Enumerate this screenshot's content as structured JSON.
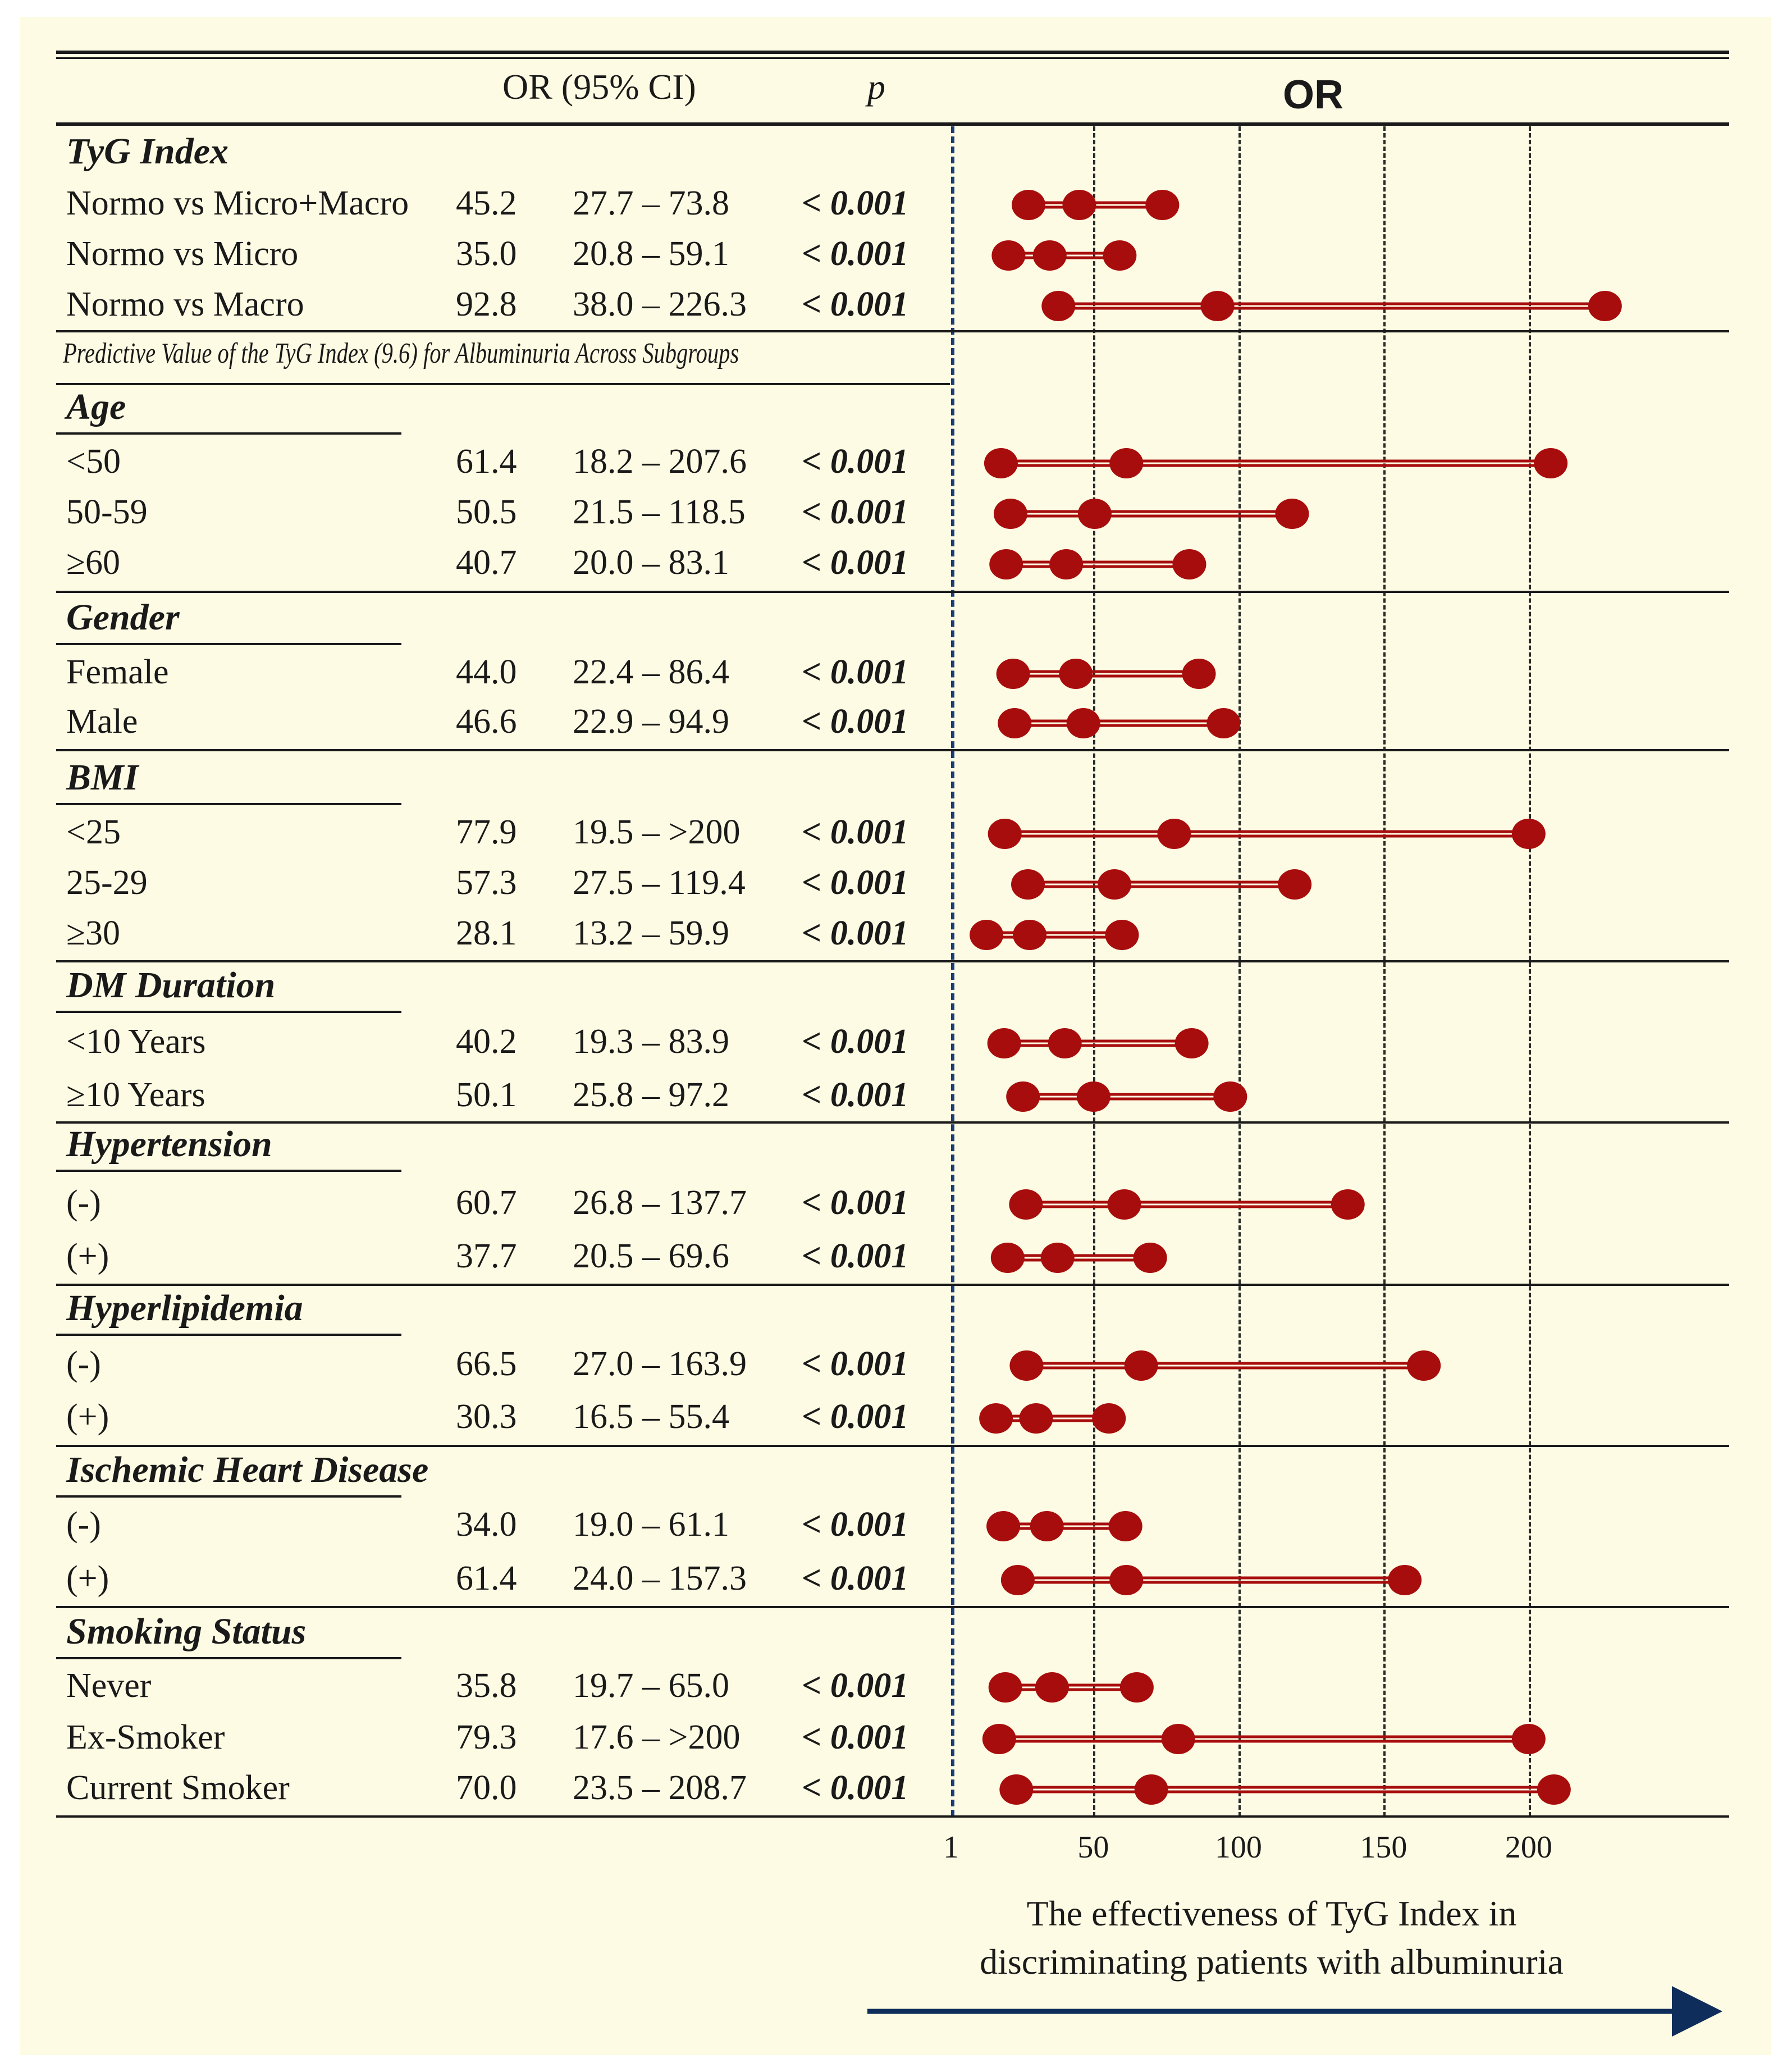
{
  "colors": {
    "marker": "#a80d0d",
    "axis_arrow": "#0f2d5a",
    "ref_line": "#1b3d78",
    "panel_bg": "#fdfbe3"
  },
  "header": {
    "col_or_ci": "OR (95% CI)",
    "col_p": "p",
    "plot_title": "OR"
  },
  "subtitle": "Predictive Value of the TyG Index (9.6) for Albuminuria Across Subgroups",
  "axis": {
    "ticks": [
      "1",
      "50",
      "100",
      "150",
      "200"
    ],
    "caption_line1": "The effectiveness of TyG Index in",
    "caption_line2": "discriminating patients with albuminuria"
  },
  "chart_data": {
    "type": "forest",
    "title": "OR",
    "xlabel": "The effectiveness of TyG Index in discriminating patients with albuminuria",
    "xlim": [
      1,
      260
    ],
    "x_ticks": [
      1,
      50,
      100,
      150,
      200
    ],
    "reference_line": 1,
    "groups": [
      {
        "name": "TyG Index",
        "rows": [
          {
            "label": "Normo vs Micro+Macro",
            "or_text": "45.2",
            "ci_text": "27.7 – 73.8",
            "p_text": "< 0.001",
            "or": 45.2,
            "lower": 27.7,
            "upper": 73.8
          },
          {
            "label": "Normo vs Micro",
            "or_text": "35.0",
            "ci_text": "20.8 – 59.1",
            "p_text": "< 0.001",
            "or": 35.0,
            "lower": 20.8,
            "upper": 59.1
          },
          {
            "label": "Normo vs Macro",
            "or_text": "92.8",
            "ci_text": "38.0 – 226.3",
            "p_text": "< 0.001",
            "or": 92.8,
            "lower": 38.0,
            "upper": 226.3
          }
        ]
      },
      {
        "name": "Age",
        "rows": [
          {
            "label": "<50",
            "or_text": "61.4",
            "ci_text": "18.2 – 207.6",
            "p_text": "< 0.001",
            "or": 61.4,
            "lower": 18.2,
            "upper": 207.6
          },
          {
            "label": "50-59",
            "or_text": "50.5",
            "ci_text": "21.5 – 118.5",
            "p_text": "< 0.001",
            "or": 50.5,
            "lower": 21.5,
            "upper": 118.5
          },
          {
            "label": "≥60",
            "or_text": "40.7",
            "ci_text": "20.0 – 83.1",
            "p_text": "< 0.001",
            "or": 40.7,
            "lower": 20.0,
            "upper": 83.1
          }
        ]
      },
      {
        "name": "Gender",
        "rows": [
          {
            "label": "Female",
            "or_text": "44.0",
            "ci_text": "22.4 – 86.4",
            "p_text": "< 0.001",
            "or": 44.0,
            "lower": 22.4,
            "upper": 86.4
          },
          {
            "label": "Male",
            "or_text": "46.6",
            "ci_text": "22.9 – 94.9",
            "p_text": "< 0.001",
            "or": 46.6,
            "lower": 22.9,
            "upper": 94.9
          }
        ]
      },
      {
        "name": "BMI",
        "rows": [
          {
            "label": "<25",
            "or_text": "77.9",
            "ci_text": "19.5 – >200",
            "p_text": "< 0.001",
            "or": 77.9,
            "lower": 19.5,
            "upper": 200
          },
          {
            "label": "25-29",
            "or_text": "57.3",
            "ci_text": "27.5 – 119.4",
            "p_text": "< 0.001",
            "or": 57.3,
            "lower": 27.5,
            "upper": 119.4
          },
          {
            "label": "≥30",
            "or_text": "28.1",
            "ci_text": "13.2 – 59.9",
            "p_text": "< 0.001",
            "or": 28.1,
            "lower": 13.2,
            "upper": 59.9
          }
        ]
      },
      {
        "name": "DM Duration",
        "rows": [
          {
            "label": "<10 Years",
            "or_text": "40.2",
            "ci_text": "19.3 – 83.9",
            "p_text": "< 0.001",
            "or": 40.2,
            "lower": 19.3,
            "upper": 83.9
          },
          {
            "label": "≥10 Years",
            "or_text": "50.1",
            "ci_text": "25.8 – 97.2",
            "p_text": "< 0.001",
            "or": 50.1,
            "lower": 25.8,
            "upper": 97.2
          }
        ]
      },
      {
        "name": "Hypertension",
        "rows": [
          {
            "label": "(-)",
            "or_text": "60.7",
            "ci_text": "26.8 – 137.7",
            "p_text": "< 0.001",
            "or": 60.7,
            "lower": 26.8,
            "upper": 137.7
          },
          {
            "label": "(+)",
            "or_text": "37.7",
            "ci_text": "20.5 – 69.6",
            "p_text": "< 0.001",
            "or": 37.7,
            "lower": 20.5,
            "upper": 69.6
          }
        ]
      },
      {
        "name": "Hyperlipidemia",
        "rows": [
          {
            "label": "(-)",
            "or_text": "66.5",
            "ci_text": "27.0 – 163.9",
            "p_text": "< 0.001",
            "or": 66.5,
            "lower": 27.0,
            "upper": 163.9
          },
          {
            "label": "(+)",
            "or_text": "30.3",
            "ci_text": "16.5 – 55.4",
            "p_text": "< 0.001",
            "or": 30.3,
            "lower": 16.5,
            "upper": 55.4
          }
        ]
      },
      {
        "name": "Ischemic Heart Disease",
        "rows": [
          {
            "label": "(-)",
            "or_text": "34.0",
            "ci_text": "19.0 – 61.1",
            "p_text": "< 0.001",
            "or": 34.0,
            "lower": 19.0,
            "upper": 61.1
          },
          {
            "label": "(+)",
            "or_text": "61.4",
            "ci_text": "24.0 – 157.3",
            "p_text": "< 0.001",
            "or": 61.4,
            "lower": 24.0,
            "upper": 157.3
          }
        ]
      },
      {
        "name": "Smoking Status",
        "rows": [
          {
            "label": "Never",
            "or_text": "35.8",
            "ci_text": "19.7 – 65.0",
            "p_text": "< 0.001",
            "or": 35.8,
            "lower": 19.7,
            "upper": 65.0
          },
          {
            "label": "Ex-Smoker",
            "or_text": "79.3",
            "ci_text": "17.6 – >200",
            "p_text": "< 0.001",
            "or": 79.3,
            "lower": 17.6,
            "upper": 200
          },
          {
            "label": "Current Smoker",
            "or_text": "70.0",
            "ci_text": "23.5 – 208.7",
            "p_text": "< 0.001",
            "or": 70.0,
            "lower": 23.5,
            "upper": 208.7
          }
        ]
      }
    ]
  }
}
